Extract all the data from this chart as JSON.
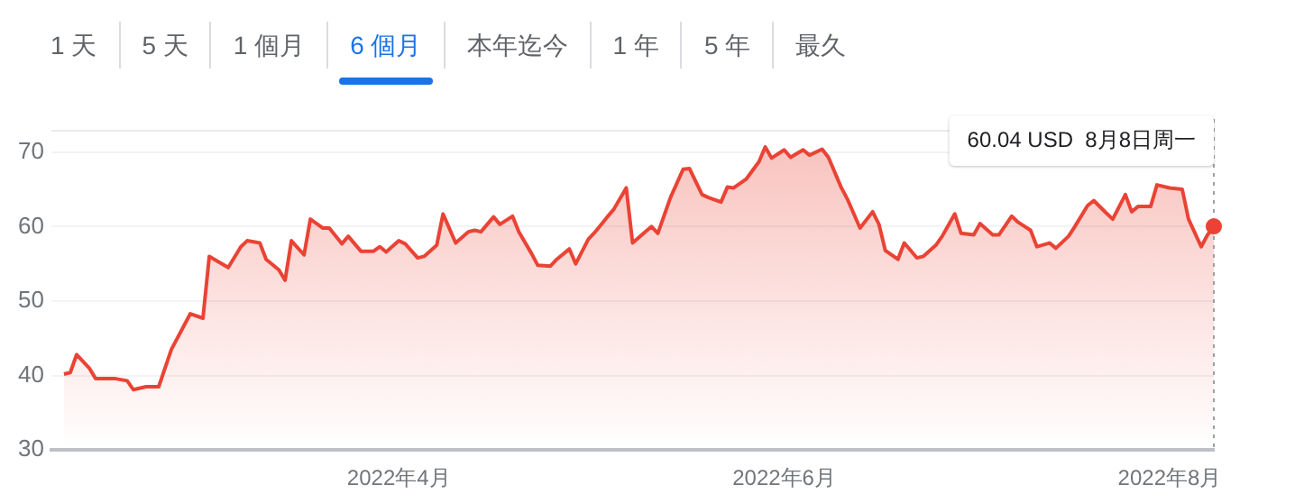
{
  "chart_data": {
    "type": "area",
    "x": [
      "2022-02-07",
      "2022-02-08",
      "2022-02-09",
      "2022-02-11",
      "2022-02-12",
      "2022-02-15",
      "2022-02-17",
      "2022-02-18",
      "2022-02-20",
      "2022-02-22",
      "2022-02-24",
      "2022-02-26",
      "2022-02-27",
      "2022-03-01",
      "2022-03-02",
      "2022-03-05",
      "2022-03-07",
      "2022-03-08",
      "2022-03-10",
      "2022-03-11",
      "2022-03-13",
      "2022-03-14",
      "2022-03-15",
      "2022-03-17",
      "2022-03-18",
      "2022-03-20",
      "2022-03-21",
      "2022-03-23",
      "2022-03-24",
      "2022-03-26",
      "2022-03-28",
      "2022-03-29",
      "2022-03-30",
      "2022-04-01",
      "2022-04-02",
      "2022-04-04",
      "2022-04-05",
      "2022-04-07",
      "2022-04-08",
      "2022-04-10",
      "2022-04-12",
      "2022-04-13",
      "2022-04-14",
      "2022-04-16",
      "2022-04-17",
      "2022-04-19",
      "2022-04-20",
      "2022-04-22",
      "2022-04-23",
      "2022-04-25",
      "2022-04-26",
      "2022-04-28",
      "2022-04-29",
      "2022-05-01",
      "2022-05-02",
      "2022-05-04",
      "2022-05-05",
      "2022-05-07",
      "2022-05-08",
      "2022-05-10",
      "2022-05-11",
      "2022-05-12",
      "2022-05-14",
      "2022-05-16",
      "2022-05-17",
      "2022-05-19",
      "2022-05-20",
      "2022-05-22",
      "2022-05-23",
      "2022-05-24",
      "2022-05-26",
      "2022-05-28",
      "2022-05-29",
      "2022-05-30",
      "2022-06-01",
      "2022-06-02",
      "2022-06-04",
      "2022-06-05",
      "2022-06-07",
      "2022-06-08",
      "2022-06-10",
      "2022-06-11",
      "2022-06-13",
      "2022-06-15",
      "2022-06-16",
      "2022-06-17",
      "2022-06-19",
      "2022-06-20",
      "2022-06-22",
      "2022-06-23",
      "2022-06-25",
      "2022-06-26",
      "2022-06-28",
      "2022-06-29",
      "2022-07-01",
      "2022-07-02",
      "2022-07-04",
      "2022-07-05",
      "2022-07-07",
      "2022-07-08",
      "2022-07-10",
      "2022-07-11",
      "2022-07-13",
      "2022-07-14",
      "2022-07-16",
      "2022-07-17",
      "2022-07-19",
      "2022-07-20",
      "2022-07-22",
      "2022-07-23",
      "2022-07-25",
      "2022-07-26",
      "2022-07-27",
      "2022-07-29",
      "2022-07-30",
      "2022-08-01",
      "2022-08-03",
      "2022-08-04",
      "2022-08-06",
      "2022-08-07",
      "2022-08-08"
    ],
    "values": [
      40.2,
      40.4,
      42.8,
      41,
      39.6,
      39.6,
      39.3,
      38.1,
      38.5,
      38.5,
      43.5,
      46.7,
      48.3,
      47.7,
      56,
      54.5,
      57.3,
      58.1,
      57.8,
      55.6,
      54.2,
      52.8,
      58.1,
      56.2,
      61,
      59.8,
      59.8,
      57.7,
      58.7,
      56.7,
      56.7,
      57.3,
      56.6,
      58.1,
      57.7,
      55.8,
      56,
      57.5,
      61.7,
      57.8,
      59.3,
      59.5,
      59.3,
      61.3,
      60.3,
      61.4,
      59.3,
      56.4,
      54.8,
      54.7,
      55.6,
      57,
      55,
      58.3,
      59.2,
      61.3,
      62.3,
      65.2,
      57.8,
      59.3,
      60,
      59.1,
      63.9,
      67.7,
      67.8,
      64.3,
      63.9,
      63.3,
      65.3,
      65.2,
      66.4,
      68.7,
      70.7,
      69.2,
      70.3,
      69.3,
      70.3,
      69.6,
      70.4,
      69.3,
      65.3,
      63.7,
      59.8,
      62,
      60.3,
      56.8,
      55.6,
      57.8,
      55.8,
      56,
      57.5,
      58.7,
      61.7,
      59.1,
      58.9,
      60.4,
      58.9,
      58.9,
      61.4,
      60.6,
      59.5,
      57.3,
      57.8,
      57.1,
      58.7,
      60,
      62.8,
      63.5,
      61.8,
      61,
      64.3,
      62,
      62.7,
      62.7,
      65.6,
      65.2,
      65,
      61,
      57.3,
      58.9,
      60.04
    ],
    "color": "#ea4335",
    "xlim": [
      "2022-02-05",
      "2022-08-08"
    ],
    "xticks": [
      {
        "value": "2022-04-01",
        "label": "2022年4月"
      },
      {
        "value": "2022-06-01",
        "label": "2022年6月"
      },
      {
        "value": "2022-08-01",
        "label": "2022年8月"
      }
    ],
    "ylim": [
      30,
      73
    ],
    "yticks": [
      30,
      40,
      50,
      60,
      70
    ],
    "grid": "y",
    "ref_lines": [
      {
        "axis": "x",
        "value": "2022-08-08",
        "color": "#9aa0a6",
        "line_style": "dotted",
        "label": "60.04 USD  8月8日周一"
      }
    ],
    "annotations": [
      "1 天",
      "5 天",
      "1 個月",
      "6 個月",
      "本年迄今",
      "1 年",
      "5 年",
      "最久"
    ]
  }
}
